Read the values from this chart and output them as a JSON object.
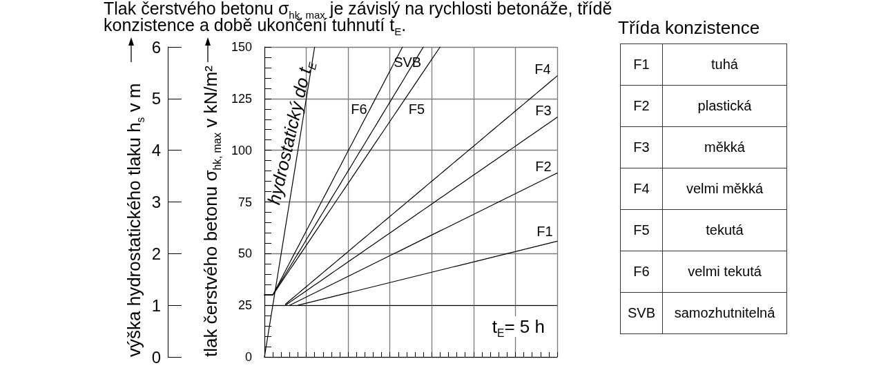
{
  "chart_data": [
    {
      "type": "line",
      "title": "Tlak čerstvého betonu σ$_{hk, max}$ je závislý na rychlosti betonáže, třídě konzistence a době ukončení tuhnutí t$_{E}$.",
      "ylabel": "tlak čerstvého betonu σ$_{hk, max}$ v kN/m²",
      "y2label": "výška hydrostatického tlaku h$_{s}$ v m",
      "annotations": [
        "t$_{E}$= 5 h"
      ],
      "categories": [
        null,
        null,
        null,
        null,
        null,
        null,
        null,
        null,
        null,
        null,
        null,
        null,
        null,
        null,
        null,
        null,
        null,
        null,
        null,
        null,
        null,
        null,
        null,
        null,
        null,
        null,
        null,
        null,
        null,
        null,
        null,
        null,
        null,
        null,
        null,
        null,
        null,
        null,
        null,
        null,
        null,
        null,
        null,
        null,
        null,
        null,
        null,
        null,
        null,
        null,
        null,
        null,
        null,
        null,
        null,
        null,
        null,
        null,
        null,
        null,
        null,
        null,
        null,
        null,
        null,
        null,
        null,
        null,
        null,
        null,
        null
      ],
      "series": [
        {
          "name": "F1",
          "color": "#000000",
          "values": [
            null,
            null,
            null,
            null,
            null,
            null,
            null,
            null,
            25,
            25.5,
            26,
            26.5,
            27,
            27.5,
            28,
            28.5,
            29,
            29.5,
            30,
            30.5,
            31,
            31.5,
            32,
            32.5,
            33,
            33.5,
            34,
            34.5,
            35,
            35.5,
            36,
            36.5,
            37,
            37.5,
            38,
            38.5,
            39,
            39.5,
            40,
            40.5,
            41,
            41.5,
            42,
            42.5,
            43,
            43.5,
            44,
            44.5,
            45,
            45.5,
            46,
            46.5,
            47,
            47.5,
            48,
            48.5,
            49,
            49.5,
            50,
            50.5,
            51,
            51.5,
            52,
            52.5,
            53,
            53.5,
            54,
            54.5,
            55,
            55.5,
            56
          ]
        },
        {
          "name": "F2",
          "color": "#000000",
          "values": [
            null,
            null,
            null,
            null,
            null,
            null,
            25,
            26,
            27,
            28,
            29,
            30,
            31,
            32,
            33,
            34,
            35,
            36,
            37,
            38,
            39,
            40,
            41,
            42,
            43,
            44,
            45,
            46,
            47,
            48,
            49,
            50,
            51,
            52,
            53,
            54,
            55,
            56,
            57,
            58,
            59,
            60,
            61,
            62,
            63,
            64,
            65,
            66,
            67,
            68,
            69,
            70,
            71,
            72,
            73,
            74,
            75,
            76,
            77,
            78,
            79,
            80,
            81,
            82,
            83,
            84,
            85,
            86,
            87,
            88,
            89
          ]
        },
        {
          "name": "F3",
          "color": "#000000",
          "values": [
            null,
            null,
            null,
            null,
            null,
            25,
            26.4,
            27.8,
            29.2,
            30.6,
            32,
            33.4,
            34.8,
            36.2,
            37.6,
            39,
            40.4,
            41.8,
            43.2,
            44.6,
            46,
            47.4,
            48.8,
            50.2,
            51.6,
            53,
            54.4,
            55.8,
            57.2,
            58.6,
            60,
            61.4,
            62.8,
            64.2,
            65.6,
            67,
            68.4,
            69.8,
            71.2,
            72.6,
            74,
            75.4,
            76.8,
            78.2,
            79.6,
            81,
            82.4,
            83.8,
            85.2,
            86.6,
            88,
            89.4,
            90.8,
            92.2,
            93.6,
            95,
            96.4,
            97.8,
            99.2,
            100.6,
            102,
            103.4,
            104.8,
            106.2,
            107.6,
            109,
            110.4,
            111.8,
            113.2,
            114.6,
            116
          ]
        },
        {
          "name": "F4",
          "color": "#000000",
          "values": [
            null,
            null,
            null,
            null,
            null,
            25.5,
            27.2,
            28.9,
            30.6,
            32.3,
            34,
            35.7,
            37.4,
            39.1,
            40.8,
            42.5,
            44.2,
            45.9,
            47.6,
            49.3,
            51,
            52.7,
            54.4,
            56.1,
            57.8,
            59.5,
            61.2,
            62.9,
            64.6,
            66.3,
            68,
            69.7,
            71.4,
            73.1,
            74.8,
            76.5,
            78.2,
            79.9,
            81.6,
            83.3,
            85,
            86.7,
            88.4,
            90.1,
            91.8,
            93.5,
            95.2,
            96.9,
            98.6,
            100.3,
            102,
            103.7,
            105.4,
            107.1,
            108.8,
            110.5,
            112.2,
            113.9,
            115.6,
            117.3,
            119,
            120.7,
            122.4,
            124.1,
            125.8,
            127.5,
            129.2,
            130.9,
            132.6,
            134.3,
            136
          ]
        },
        {
          "name": "F5",
          "color": "#000000",
          "values": [
            30,
            30,
            30,
            33,
            36,
            39,
            42,
            45,
            48,
            51,
            54,
            57,
            60,
            63,
            66,
            69,
            72,
            75,
            78,
            81,
            84,
            87,
            90,
            93,
            96,
            99,
            102,
            105,
            108,
            111,
            114,
            117,
            120,
            123,
            126,
            129,
            132,
            135,
            138,
            141,
            144,
            147,
            150,
            null,
            null,
            null,
            null,
            null,
            null,
            null,
            null,
            null,
            null,
            null,
            null,
            null,
            null,
            null,
            null,
            null,
            null,
            null,
            null,
            null,
            null,
            null,
            null,
            null,
            null,
            null,
            null
          ]
        },
        {
          "name": "F6",
          "color": "#000000",
          "values": [
            30,
            30,
            30,
            33.9,
            37.7,
            41.6,
            45.5,
            49.4,
            53.2,
            57.1,
            61,
            64.8,
            68.7,
            72.6,
            76.5,
            80.3,
            84.2,
            88.1,
            91.9,
            95.8,
            99.7,
            103.5,
            107.4,
            111.3,
            115.2,
            119,
            122.9,
            126.8,
            130.6,
            134.5,
            138.4,
            142.3,
            146.1,
            150,
            null,
            null,
            null,
            null,
            null,
            null,
            null,
            null,
            null,
            null,
            null,
            null,
            null,
            null,
            null,
            null,
            null,
            null,
            null,
            null,
            null,
            null,
            null,
            null,
            null,
            null,
            null,
            null,
            null,
            null,
            null,
            null,
            null,
            null,
            null,
            null,
            null
          ]
        },
        {
          "name": "SVB",
          "color": "#000000",
          "values": [
            30,
            30,
            30,
            33.3,
            36.7,
            40,
            43.3,
            46.7,
            50,
            53.3,
            56.7,
            60,
            63.3,
            66.7,
            70,
            73.3,
            76.7,
            80,
            83.3,
            86.7,
            90,
            93.3,
            96.7,
            100,
            103.3,
            106.7,
            110,
            113.3,
            116.7,
            120,
            123.3,
            126.7,
            130,
            133.3,
            136.7,
            140,
            143.3,
            146.7,
            150,
            null,
            null,
            null,
            null,
            null,
            null,
            null,
            null,
            null,
            null,
            null,
            null,
            null,
            null,
            null,
            null,
            null,
            null,
            null,
            null,
            null,
            null,
            null,
            null,
            null,
            null,
            null,
            null,
            null,
            null,
            null,
            null
          ]
        },
        {
          "name": "hydrostatický do t$_{E}$",
          "color": "#000000",
          "values": [
            0,
            12.5,
            25,
            37.5,
            50,
            62.5,
            75,
            87.5,
            100,
            112.5,
            125,
            137.5,
            150,
            null,
            null,
            null,
            null,
            null,
            null,
            null,
            null,
            null,
            null,
            null,
            null,
            null,
            null,
            null,
            null,
            null,
            null,
            null,
            null,
            null,
            null,
            null,
            null,
            null,
            null,
            null,
            null,
            null,
            null,
            null,
            null,
            null,
            null,
            null,
            null,
            null,
            null,
            null,
            null,
            null,
            null,
            null,
            null,
            null,
            null,
            null,
            null,
            null,
            null,
            null,
            null,
            null,
            null,
            null,
            null,
            null,
            null
          ]
        }
      ],
      "ylim": [
        0,
        150
      ],
      "yticks": [
        0,
        25,
        50,
        75,
        100,
        125,
        150
      ],
      "y2lim": [
        0,
        6
      ],
      "y2ticks": [
        0,
        1,
        2,
        3,
        4,
        5,
        6
      ],
      "ref_lines": [
        {
          "axis": "y",
          "value": 25,
          "color": "#000000"
        }
      ],
      "grid": true,
      "marker": "none",
      "line_style": "solid"
    },
    {
      "type": "other",
      "title": "Třída konzistence",
      "annotations": [
        "F1",
        "tuhá",
        "F2",
        "plastická",
        "F3",
        "měkká",
        "F4",
        "velmi měkká",
        "F5",
        "tekutá",
        "F6",
        "velmi tekutá",
        "SVB",
        "samozhutnitelná"
      ]
    }
  ]
}
